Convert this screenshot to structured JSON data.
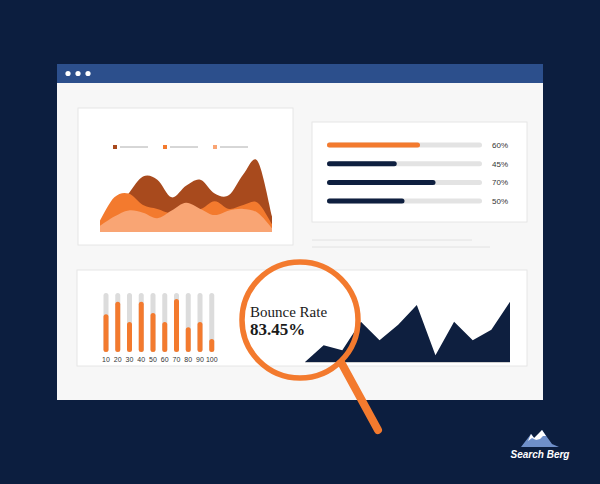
{
  "chart_data": [
    {
      "type": "area",
      "categories": [
        null,
        null,
        null,
        null,
        null,
        null,
        null,
        null,
        null,
        null,
        null,
        null,
        null
      ],
      "series": [
        {
          "color": "#a84a1d",
          "values": [
            8,
            25,
            50,
            72,
            68,
            45,
            60,
            68,
            50,
            48,
            75,
            92,
            20
          ]
        },
        {
          "color": "#f37a2e",
          "values": [
            15,
            45,
            50,
            35,
            30,
            25,
            35,
            30,
            40,
            30,
            35,
            38,
            10
          ]
        },
        {
          "color": "#f9a574",
          "values": [
            8,
            20,
            28,
            25,
            18,
            28,
            38,
            30,
            22,
            28,
            30,
            25,
            5
          ]
        }
      ],
      "ylim": [
        0,
        100
      ],
      "tick_labels": false,
      "legend": "top"
    },
    {
      "type": "bar",
      "orientation": "horizontal",
      "categories": [
        null,
        null,
        null,
        null
      ],
      "values": [
        60,
        45,
        70,
        50
      ],
      "value_labels": [
        "60%",
        "45%",
        "70%",
        "50%"
      ],
      "colors": [
        "#f37a2e",
        "#0e1f3f",
        "#0e1f3f",
        "#0e1f3f"
      ],
      "xlim": [
        0,
        100
      ],
      "data_labels": true,
      "tick_labels": false
    },
    {
      "type": "bar",
      "categories": [
        "10",
        "20",
        "30",
        "40",
        "50",
        "60",
        "70",
        "80",
        "90",
        "100"
      ],
      "values": [
        64,
        85,
        51,
        85,
        66,
        51,
        90,
        42,
        51,
        22
      ],
      "color": "#f37a2e",
      "ylim": [
        0,
        100
      ],
      "tick_labels": "x"
    },
    {
      "type": "area",
      "categories": [
        null,
        null,
        null,
        null,
        null,
        null,
        null,
        null,
        null,
        null,
        null,
        null
      ],
      "values": [
        0,
        27,
        19,
        65,
        35,
        60,
        92,
        11,
        65,
        35,
        52,
        97
      ],
      "color": "#0e1f3f",
      "ylim": [
        0,
        100
      ],
      "tick_labels": false
    }
  ],
  "bounce_rate": {
    "label": "Bounce Rate",
    "value": "83.45%"
  },
  "logo": {
    "text": "Search Berg"
  }
}
